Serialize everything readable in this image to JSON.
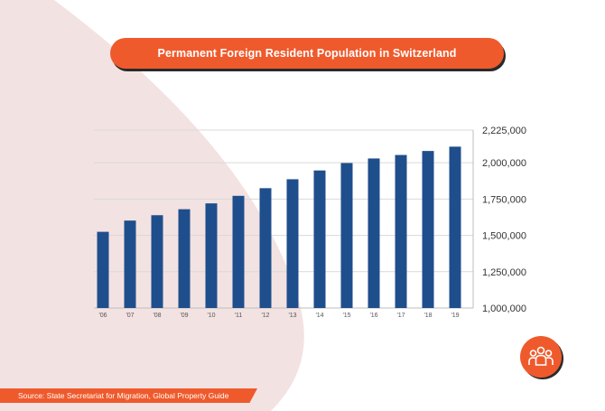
{
  "header": {
    "title": "Permanent Foreign Resident Population in Switzerland"
  },
  "footer": {
    "source": "Source: State Secretariat for Migration, Global Property Guide"
  },
  "badge": {
    "icon": "people-group-icon"
  },
  "colors": {
    "accent": "#ef5a2c",
    "bar": "#1f4e8c",
    "background_shape": "#f3e2e2"
  },
  "chart_data": {
    "type": "bar",
    "categories": [
      "'06",
      "'07",
      "'08",
      "'09",
      "'10",
      "'11",
      "'12",
      "'13",
      "'14",
      "'15",
      "'16",
      "'17",
      "'18",
      "'19"
    ],
    "series": [
      {
        "values": [
          1524663,
          1602093,
          1638949,
          1680197,
          1720393,
          1772279,
          1825060,
          1886630,
          1947023,
          1998056,
          2029527,
          2053589,
          2081169,
          2110916
        ]
      }
    ],
    "yticks": [
      1000000,
      1250000,
      1500000,
      1750000,
      2000000,
      2225000
    ],
    "ytick_labels": [
      "1,000,000",
      "1,250,000",
      "1,500,000",
      "1,750,000",
      "2,000,000",
      "2,225,000"
    ],
    "ylim": [
      1000000,
      2225000
    ],
    "y_axis_side": "right",
    "grid": true,
    "legend": "none"
  }
}
